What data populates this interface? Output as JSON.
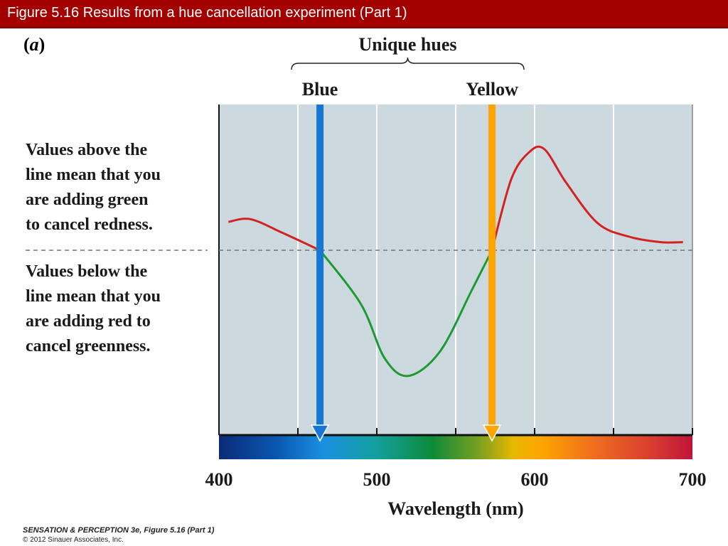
{
  "header": {
    "title": "Figure 5.16  Results from a hue cancellation experiment (Part 1)",
    "color": "#a30000"
  },
  "panel": {
    "open": "(",
    "letter": "a",
    "close": ")"
  },
  "notes": {
    "above": [
      "Values above the",
      "line mean that you",
      "are adding green",
      "to cancel redness."
    ],
    "below": [
      "Values below the",
      "line mean that you",
      "are adding red to",
      "cancel greenness."
    ]
  },
  "footer": {
    "book": "SENSATION & PERCEPTION 3e, Figure 5.16 (Part 1)",
    "copyright": "© 2012 Sinauer Associates, Inc."
  },
  "chart_data": {
    "type": "line",
    "xlabel": "Wavelength (nm)",
    "xlim": [
      400,
      700
    ],
    "xticks": [
      400,
      500,
      600,
      700
    ],
    "ylim": [
      -1,
      1
    ],
    "grid": true,
    "bracket_label": "Unique hues",
    "unique_hues": [
      {
        "name": "Blue",
        "x": 464,
        "color": "#1577d6"
      },
      {
        "name": "Yellow",
        "x": 573,
        "color": "#ffa500"
      }
    ],
    "series": [
      {
        "color_above": "#d42222",
        "color_below": "#1e9a34",
        "x": [
          406,
          420,
          440,
          464,
          490,
          505,
          520,
          540,
          560,
          573,
          585,
          596,
          606,
          620,
          640,
          660,
          680,
          694
        ],
        "y": [
          0.21,
          0.23,
          0.13,
          0.0,
          -0.4,
          -0.8,
          -0.93,
          -0.75,
          -0.3,
          0.0,
          0.52,
          0.72,
          0.75,
          0.5,
          0.2,
          0.1,
          0.06,
          0.06
        ]
      }
    ],
    "colors": {
      "plot_background": "#ccd9de",
      "zero_line": "#777777"
    }
  }
}
